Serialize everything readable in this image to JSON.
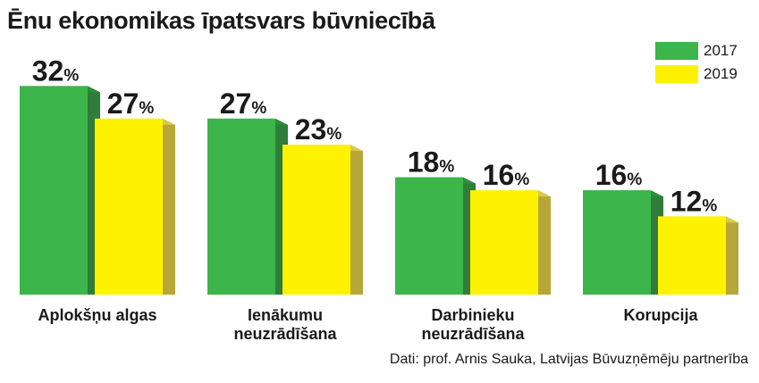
{
  "title": "Ēnu ekonomikas īpatsvars būvniecībā",
  "source": "Dati: prof. Arnis Sauka, Latvijas Būvuzņēmēju partnerība",
  "colors": {
    "green": "#3cb54a",
    "green_side": "#2f7d3a",
    "green_top": "#2a8f3d",
    "yellow": "#fff200",
    "yellow_side": "#b7a63a",
    "yellow_top": "#d8c94a"
  },
  "chart_data": {
    "type": "bar",
    "title": "Ēnu ekonomikas īpatsvars būvniecībā",
    "categories": [
      "Aplokšņu algas",
      "Ienākumu neuzrādīšana",
      "Darbinieku neuzrādīšana",
      "Korupcija"
    ],
    "category_lines": [
      [
        "Aplokšņu algas"
      ],
      [
        "Ienākumu",
        "neuzrādīšana"
      ],
      [
        "Darbinieku",
        "neuzrādīšana"
      ],
      [
        "Korupcija"
      ]
    ],
    "series": [
      {
        "name": "2017",
        "values": [
          32,
          27,
          18,
          16
        ],
        "labels": [
          "32",
          "27",
          "18",
          "16"
        ]
      },
      {
        "name": "2019",
        "values": [
          27,
          23,
          16,
          12
        ],
        "labels": [
          "27",
          "23",
          "16",
          "12"
        ]
      }
    ],
    "unit": "%",
    "ylim": [
      0,
      35
    ],
    "grid": false,
    "legend_position": "top-right"
  }
}
